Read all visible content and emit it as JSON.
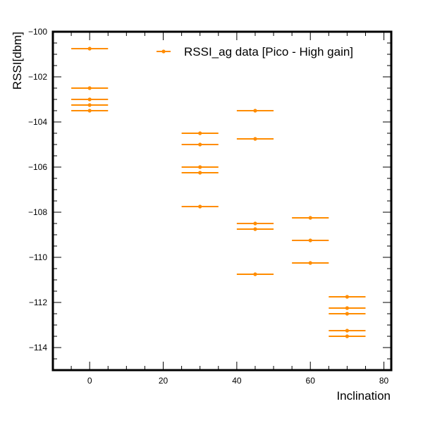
{
  "chart_data": {
    "type": "scatter",
    "title": "",
    "xlabel": "Inclination",
    "ylabel": "RSSI[dbm]",
    "xlim": [
      -10,
      82
    ],
    "ylim": [
      -115,
      -100
    ],
    "x_ticks": [
      0,
      20,
      40,
      60,
      80
    ],
    "y_ticks": [
      -114,
      -112,
      -110,
      -108,
      -106,
      -104,
      -102,
      -100
    ],
    "x_minor_step": 5,
    "y_minor_step": 0.5,
    "x_error_half_width": 5,
    "grid": false,
    "legend_position": "top-right",
    "color": "#ff8c00",
    "series": [
      {
        "name": "RSSI_ag data [Pico - High gain]",
        "points": [
          {
            "x": 0,
            "y": -100.75
          },
          {
            "x": 0,
            "y": -102.5
          },
          {
            "x": 0,
            "y": -103
          },
          {
            "x": 0,
            "y": -103.25
          },
          {
            "x": 0,
            "y": -103.5
          },
          {
            "x": 30,
            "y": -104.5
          },
          {
            "x": 30,
            "y": -105
          },
          {
            "x": 30,
            "y": -106
          },
          {
            "x": 30,
            "y": -106.25
          },
          {
            "x": 30,
            "y": -107.75
          },
          {
            "x": 45,
            "y": -103.5
          },
          {
            "x": 45,
            "y": -104.75
          },
          {
            "x": 45,
            "y": -108.5
          },
          {
            "x": 45,
            "y": -108.75
          },
          {
            "x": 45,
            "y": -110.75
          },
          {
            "x": 60,
            "y": -108.25
          },
          {
            "x": 60,
            "y": -109.25
          },
          {
            "x": 60,
            "y": -110.25
          },
          {
            "x": 70,
            "y": -111.75
          },
          {
            "x": 70,
            "y": -112.25
          },
          {
            "x": 70,
            "y": -112.5
          },
          {
            "x": 70,
            "y": -113.25
          },
          {
            "x": 70,
            "y": -113.5
          }
        ]
      }
    ]
  }
}
